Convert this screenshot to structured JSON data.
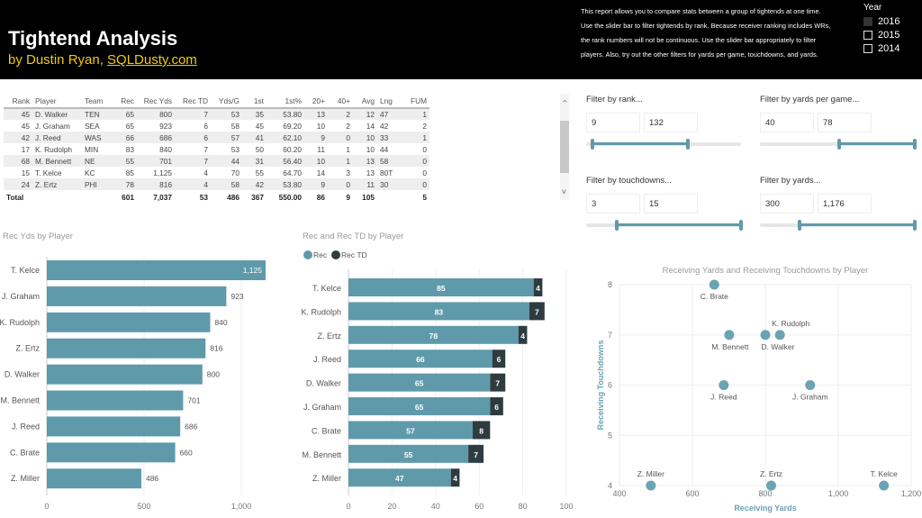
{
  "header": {
    "title": "Tightend Analysis",
    "by": "by Dustin Ryan, ",
    "link": "SQLDusty.com",
    "description": [
      "This report allows you to compare stats between a group of tightends at one time.",
      "Use the slider bar to filter tightends by rank. Because receiver ranking includes WRs,",
      "the rank numbers will not be continuous. Use the slider bar appropriately to filter",
      "players. Also, try out the other filters for yards per game, touchdowns, and yards."
    ]
  },
  "year_filter": {
    "title": "Year",
    "options": [
      {
        "label": "2016",
        "checked": true
      },
      {
        "label": "2015",
        "checked": false
      },
      {
        "label": "2014",
        "checked": false
      }
    ]
  },
  "table": {
    "columns": [
      "Rank",
      "Player",
      "Team",
      "Rec",
      "Rec Yds",
      "Rec TD",
      "Yds/G",
      "1st",
      "1st%",
      "20+",
      "40+",
      "Avg",
      "Lng",
      "FUM"
    ],
    "rows": [
      [
        "45",
        "D. Walker",
        "TEN",
        "65",
        "800",
        "7",
        "53",
        "35",
        "53.80",
        "13",
        "2",
        "12",
        "47",
        "1"
      ],
      [
        "45",
        "J. Graham",
        "SEA",
        "65",
        "923",
        "6",
        "58",
        "45",
        "69.20",
        "10",
        "2",
        "14",
        "42",
        "2"
      ],
      [
        "42",
        "J. Reed",
        "WAS",
        "66",
        "686",
        "6",
        "57",
        "41",
        "62.10",
        "9",
        "0",
        "10",
        "33",
        "1"
      ],
      [
        "17",
        "K. Rudolph",
        "MIN",
        "83",
        "840",
        "7",
        "53",
        "50",
        "60.20",
        "11",
        "1",
        "10",
        "44",
        "0"
      ],
      [
        "68",
        "M. Bennett",
        "NE",
        "55",
        "701",
        "7",
        "44",
        "31",
        "56.40",
        "10",
        "1",
        "13",
        "58",
        "0"
      ],
      [
        "15",
        "T. Kelce",
        "KC",
        "85",
        "1,125",
        "4",
        "70",
        "55",
        "64.70",
        "14",
        "3",
        "13",
        "80T",
        "0"
      ],
      [
        "24",
        "Z. Ertz",
        "PHI",
        "78",
        "816",
        "4",
        "58",
        "42",
        "53.80",
        "9",
        "0",
        "11",
        "30",
        "0"
      ]
    ],
    "total": [
      "Total",
      "",
      "",
      "601",
      "7,037",
      "53",
      "486",
      "367",
      "550.00",
      "86",
      "9",
      "105",
      "",
      "5"
    ]
  },
  "filters": [
    {
      "label": "Filter by rank...",
      "min": "9",
      "max": "132",
      "range": [
        1,
        200
      ],
      "sel": [
        9,
        132
      ]
    },
    {
      "label": "Filter by yards per game...",
      "min": "40",
      "max": "78",
      "range": [
        0,
        78
      ],
      "sel": [
        40,
        78
      ]
    },
    {
      "label": "Filter by touchdowns...",
      "min": "3",
      "max": "15",
      "range": [
        0,
        15
      ],
      "sel": [
        3,
        15
      ]
    },
    {
      "label": "Filter by yards...",
      "min": "300",
      "max": "1,176",
      "range": [
        0,
        1176
      ],
      "sel": [
        300,
        1176
      ]
    }
  ],
  "colors": {
    "rec": "#5f9aab",
    "rectd": "#2e3c40",
    "scatter": "#6aa3b4"
  },
  "chart_data": [
    {
      "type": "bar",
      "title": "Rec Yds by Player",
      "categories": [
        "T. Kelce",
        "J. Graham",
        "K. Rudolph",
        "Z. Ertz",
        "D. Walker",
        "M. Bennett",
        "J. Reed",
        "C. Brate",
        "Z. Miller"
      ],
      "values": [
        1125,
        923,
        840,
        816,
        800,
        701,
        686,
        660,
        486
      ],
      "labels": [
        "1,125",
        "923",
        "840",
        "816",
        "800",
        "701",
        "686",
        "660",
        "486"
      ],
      "xticks": [
        "0",
        "500",
        "1,000"
      ],
      "xlim": [
        0,
        1250
      ]
    },
    {
      "type": "bar",
      "title": "Rec and Rec TD by Player",
      "stacked": true,
      "legend": "top-left",
      "categories": [
        "T. Kelce",
        "K. Rudolph",
        "Z. Ertz",
        "J. Reed",
        "D. Walker",
        "J. Graham",
        "C. Brate",
        "M. Bennett",
        "Z. Miller"
      ],
      "series": [
        {
          "name": "Rec",
          "values": [
            85,
            83,
            78,
            66,
            65,
            65,
            57,
            55,
            47
          ]
        },
        {
          "name": "Rec TD",
          "values": [
            4,
            7,
            4,
            6,
            7,
            6,
            8,
            7,
            4
          ]
        }
      ],
      "xticks": [
        "0",
        "20",
        "40",
        "60",
        "80",
        "100"
      ],
      "xlim": [
        0,
        100
      ]
    },
    {
      "type": "scatter",
      "title": "Receiving Yards and Receiving Touchdowns by Player",
      "xlabel": "Receiving Yards",
      "ylabel": "Receiving Touchdowns",
      "xlim": [
        400,
        1200
      ],
      "ylim": [
        4,
        8
      ],
      "xticks": [
        "400",
        "600",
        "800",
        "1,000",
        "1,200"
      ],
      "yticks": [
        "4",
        "5",
        "6",
        "7",
        "8"
      ],
      "grid": true,
      "points": [
        {
          "name": "T. Kelce",
          "x": 1125,
          "y": 4
        },
        {
          "name": "J. Graham",
          "x": 923,
          "y": 6
        },
        {
          "name": "K. Rudolph",
          "x": 840,
          "y": 7
        },
        {
          "name": "Z. Ertz",
          "x": 816,
          "y": 4
        },
        {
          "name": "D. Walker",
          "x": 800,
          "y": 7
        },
        {
          "name": "M. Bennett",
          "x": 701,
          "y": 7
        },
        {
          "name": "J. Reed",
          "x": 686,
          "y": 6
        },
        {
          "name": "C. Brate",
          "x": 660,
          "y": 8
        },
        {
          "name": "Z. Miller",
          "x": 486,
          "y": 4
        }
      ]
    }
  ]
}
